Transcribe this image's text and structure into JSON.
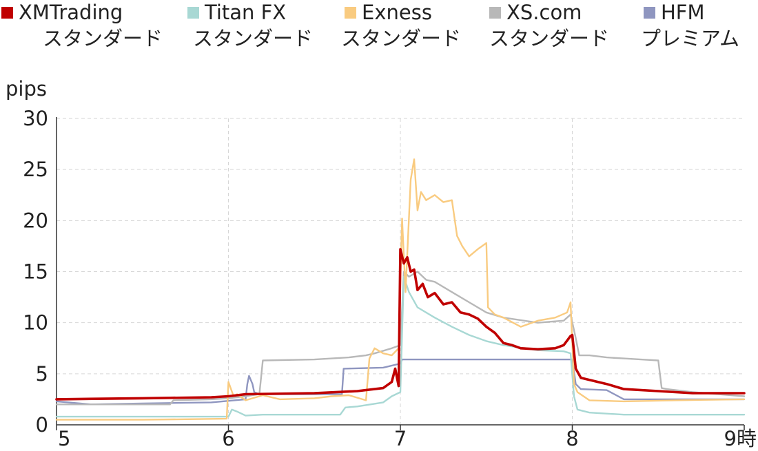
{
  "chart_data": {
    "type": "line",
    "ylabel": "pips",
    "xlabel": "",
    "xlim": [
      5,
      9
    ],
    "ylim": [
      0,
      30
    ],
    "grid": true,
    "legend_position": "top",
    "x_ticks": [
      "5",
      "6",
      "7",
      "8",
      "9時"
    ],
    "y_ticks": [
      "0",
      "5",
      "10",
      "15",
      "20",
      "25",
      "30"
    ],
    "series": [
      {
        "name": "XMTrading",
        "name_sub": "スタンダード",
        "color": "#c00000",
        "x": [
          5.0,
          5.5,
          5.9,
          6.0,
          6.1,
          6.5,
          6.75,
          6.9,
          6.95,
          6.97,
          6.99,
          7.0,
          7.02,
          7.04,
          7.06,
          7.08,
          7.1,
          7.13,
          7.16,
          7.2,
          7.25,
          7.3,
          7.35,
          7.4,
          7.45,
          7.5,
          7.55,
          7.6,
          7.65,
          7.7,
          7.8,
          7.9,
          7.95,
          7.99,
          8.0,
          8.02,
          8.05,
          8.1,
          8.2,
          8.3,
          8.5,
          8.7,
          9.0
        ],
        "y": [
          2.5,
          2.6,
          2.7,
          2.8,
          3.0,
          3.1,
          3.3,
          3.6,
          4.2,
          5.5,
          3.8,
          17.2,
          15.8,
          16.4,
          15.0,
          15.2,
          13.2,
          13.8,
          12.5,
          12.9,
          11.8,
          12.0,
          11.0,
          10.8,
          10.4,
          9.6,
          9.0,
          8.0,
          7.8,
          7.5,
          7.4,
          7.5,
          7.8,
          8.7,
          8.8,
          5.5,
          4.6,
          4.4,
          4.0,
          3.5,
          3.3,
          3.1,
          3.1
        ]
      },
      {
        "name": "Titan FX",
        "name_sub": "スタンダード",
        "color": "#a8d8d4",
        "x": [
          5.0,
          5.5,
          6.0,
          6.02,
          6.05,
          6.1,
          6.2,
          6.5,
          6.65,
          6.68,
          6.75,
          6.9,
          6.95,
          7.0,
          7.02,
          7.05,
          7.1,
          7.2,
          7.3,
          7.4,
          7.5,
          7.6,
          7.8,
          7.95,
          7.99,
          8.01,
          8.03,
          8.1,
          8.3,
          8.6,
          9.0
        ],
        "y": [
          0.8,
          0.8,
          0.8,
          1.5,
          1.3,
          0.9,
          1.0,
          1.0,
          1.0,
          1.7,
          1.8,
          2.2,
          2.8,
          3.2,
          14.5,
          13.0,
          11.5,
          10.5,
          9.6,
          8.8,
          8.2,
          7.8,
          7.3,
          7.2,
          7.0,
          2.8,
          1.5,
          1.2,
          1.0,
          1.0,
          1.0
        ]
      },
      {
        "name": "Exness",
        "name_sub": "スタンダード",
        "color": "#f9cb80",
        "x": [
          5.0,
          5.5,
          5.99,
          6.0,
          6.03,
          6.05,
          6.1,
          6.2,
          6.3,
          6.5,
          6.6,
          6.7,
          6.8,
          6.82,
          6.85,
          6.9,
          6.95,
          6.99,
          7.01,
          7.03,
          7.06,
          7.08,
          7.1,
          7.12,
          7.15,
          7.2,
          7.25,
          7.3,
          7.33,
          7.36,
          7.4,
          7.45,
          7.5,
          7.51,
          7.55,
          7.6,
          7.7,
          7.8,
          7.9,
          7.97,
          7.99,
          8.01,
          8.03,
          8.1,
          8.3,
          8.6,
          9.0
        ],
        "y": [
          0.5,
          0.5,
          0.6,
          4.2,
          2.8,
          3.0,
          2.4,
          2.9,
          2.5,
          2.6,
          2.8,
          2.9,
          2.4,
          6.5,
          7.5,
          7.0,
          6.8,
          7.5,
          20.2,
          13.0,
          24.0,
          26.0,
          21.0,
          22.8,
          22.0,
          22.5,
          21.8,
          22.0,
          18.5,
          17.5,
          16.5,
          17.2,
          17.8,
          11.5,
          10.8,
          10.5,
          9.6,
          10.2,
          10.5,
          11.0,
          12.0,
          4.0,
          3.2,
          2.4,
          2.3,
          2.4,
          2.5
        ]
      },
      {
        "name": "XS.com",
        "name_sub": "スタンダード",
        "color": "#b8b8b8",
        "x": [
          5.0,
          5.5,
          5.66,
          5.68,
          5.9,
          6.0,
          6.1,
          6.18,
          6.2,
          6.5,
          6.7,
          6.8,
          6.85,
          6.95,
          7.0,
          7.02,
          7.05,
          7.1,
          7.15,
          7.2,
          7.3,
          7.4,
          7.5,
          7.6,
          7.8,
          7.95,
          7.99,
          8.02,
          8.04,
          8.1,
          8.2,
          8.3,
          8.4,
          8.5,
          8.52,
          8.55,
          8.7,
          9.0
        ],
        "y": [
          2.0,
          2.0,
          2.0,
          2.4,
          2.5,
          2.6,
          2.8,
          3.0,
          6.3,
          6.4,
          6.6,
          6.8,
          7.0,
          7.5,
          7.8,
          15.0,
          14.5,
          15.0,
          14.2,
          14.0,
          13.0,
          12.0,
          11.0,
          10.5,
          10.0,
          10.2,
          10.8,
          8.5,
          6.8,
          6.8,
          6.6,
          6.5,
          6.4,
          6.3,
          3.6,
          3.5,
          3.2,
          2.8
        ]
      },
      {
        "name": "HFM",
        "name_sub": "プレミアム",
        "color": "#8f96c0",
        "x": [
          5.0,
          5.2,
          5.5,
          5.9,
          6.1,
          6.11,
          6.12,
          6.14,
          6.15,
          6.18,
          6.5,
          6.66,
          6.67,
          6.9,
          7.0,
          7.01,
          7.5,
          7.99,
          8.0,
          8.02,
          8.05,
          8.2,
          8.3,
          8.6,
          9.0
        ],
        "y": [
          2.3,
          2.0,
          2.1,
          2.2,
          2.5,
          4.0,
          4.8,
          4.0,
          3.2,
          3.0,
          3.0,
          3.0,
          5.5,
          5.6,
          6.0,
          6.4,
          6.4,
          6.4,
          6.4,
          4.0,
          3.5,
          3.4,
          2.5,
          2.5,
          2.5
        ]
      }
    ]
  }
}
